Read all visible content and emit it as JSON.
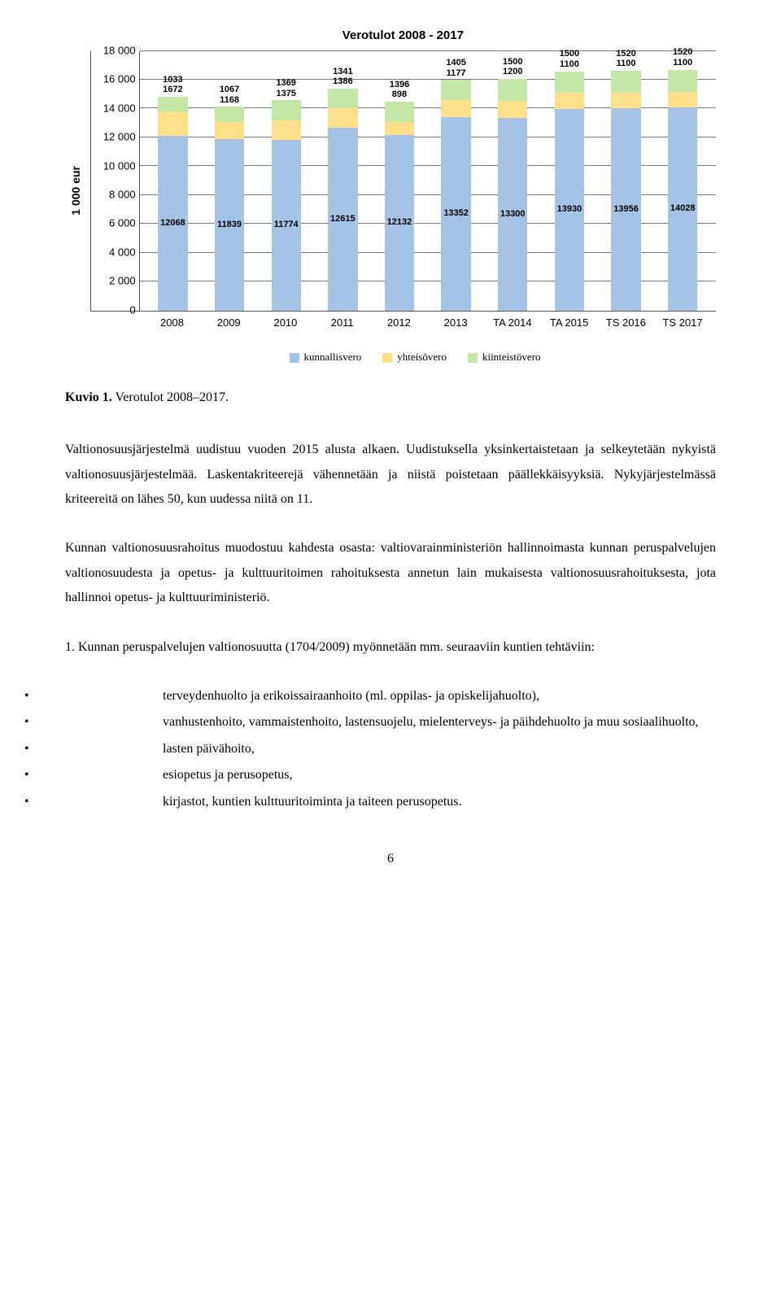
{
  "chart": {
    "title": "Verotulot 2008 - 2017",
    "y_label": "1 000 eur",
    "y_max": 18000,
    "y_ticks": [
      "0",
      "2 000",
      "4 000",
      "6 000",
      "8 000",
      "10 000",
      "12 000",
      "14 000",
      "16 000",
      "18 000"
    ],
    "series_colors": {
      "kunnallisvero": "#a6c2e4",
      "yhteisovero": "#ffe08a",
      "kiinteistovero": "#c4e6a7"
    },
    "categories": [
      "2008",
      "2009",
      "2010",
      "2011",
      "2012",
      "2013",
      "TA 2014",
      "TA 2015",
      "TS 2016",
      "TS 2017"
    ],
    "data": [
      {
        "kunnallis": 12068,
        "yhteiso": 1672,
        "kiinteisto": 1033
      },
      {
        "kunnallis": 11839,
        "yhteiso": 1168,
        "kiinteisto": 1067
      },
      {
        "kunnallis": 11774,
        "yhteiso": 1375,
        "kiinteisto": 1369
      },
      {
        "kunnallis": 12615,
        "yhteiso": 1386,
        "kiinteisto": 1341
      },
      {
        "kunnallis": 12132,
        "yhteiso": 898,
        "kiinteisto": 1396
      },
      {
        "kunnallis": 13352,
        "yhteiso": 1177,
        "kiinteisto": 1405
      },
      {
        "kunnallis": 13300,
        "yhteiso": 1200,
        "kiinteisto": 1500
      },
      {
        "kunnallis": 13930,
        "yhteiso": 1100,
        "kiinteisto": 1500
      },
      {
        "kunnallis": 13956,
        "yhteiso": 1100,
        "kiinteisto": 1520
      },
      {
        "kunnallis": 14028,
        "yhteiso": 1100,
        "kiinteisto": 1520
      }
    ],
    "legend": {
      "kunnallis": "kunnallisvero",
      "yhteiso": "yhteisövero",
      "kiinteisto": "kiinteistövero"
    }
  },
  "caption": {
    "prefix": "Kuvio 1.",
    "text": " Verotulot 2008–2017."
  },
  "paragraphs": {
    "p1": "Valtionosuusjärjestelmä uudistuu vuoden 2015 alusta alkaen. Uudistuksella yksinkertaistetaan ja selkeytetään nykyistä valtionosuusjärjestelmää. Laskentakriteerejä vähennetään ja niistä poistetaan päällekkäisyyksiä. Nykyjärjestelmässä kriteereitä on lähes 50, kun uudessa niitä on 11.",
    "p2": "Kunnan valtionosuusrahoitus muodostuu kahdesta osasta: valtiovarainministeriön hallinnoimasta kunnan peruspalvelujen valtionosuudesta ja opetus- ja kulttuuritoimen rahoituksesta annetun lain mukaisesta valtionosuusrahoituksesta, jota hallinnoi opetus- ja kulttuuriministeriö.",
    "p3": "1. Kunnan peruspalvelujen valtionosuutta (1704/2009) myönnetään mm. seuraaviin kuntien tehtäviin:"
  },
  "bullets": [
    "terveydenhuolto ja erikoissairaanhoito (ml. oppilas- ja opiskelijahuolto),",
    "vanhustenhoito, vammaistenhoito, lastensuojelu, mielenterveys- ja päihdehuolto ja muu sosiaalihuolto,",
    "lasten päivähoito,",
    "esiopetus ja perusopetus,",
    "kirjastot, kuntien kulttuuritoiminta ja taiteen perusopetus."
  ],
  "page_number": "6"
}
